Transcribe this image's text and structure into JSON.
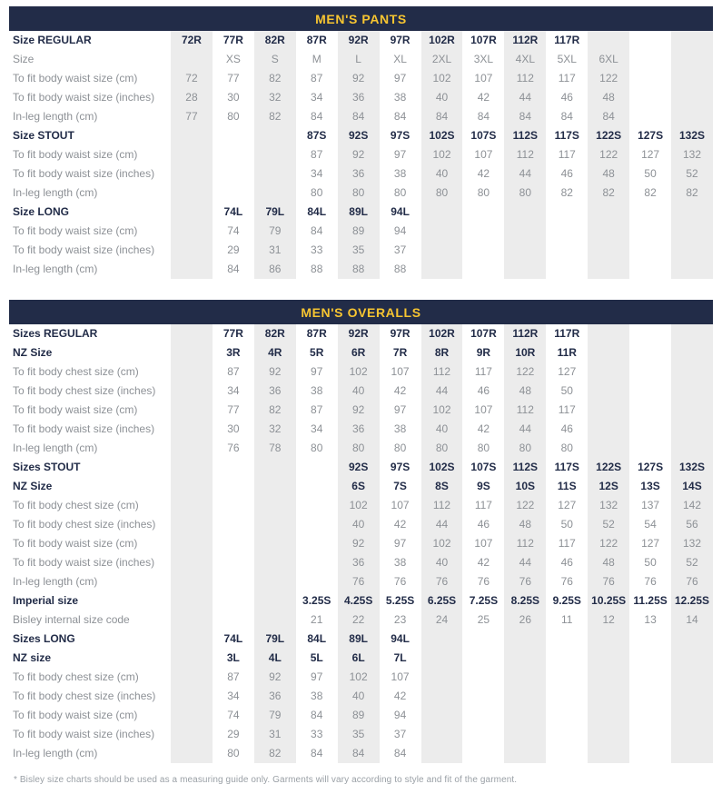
{
  "colors": {
    "header_bg_navy": "#222c48",
    "header_text_yellow": "#f7c531",
    "column_shade_gray": "#ececec",
    "value_text_gray": "#8d9196",
    "bold_text_navy": "#222c48"
  },
  "footnote": "* Bisley size charts should be used as a measuring guide only. Garments will vary according to style and fit of the garment.",
  "tables": [
    {
      "title": "MEN'S PANTS",
      "rows": [
        {
          "label": "Size REGULAR",
          "label_bold": true,
          "values_bold": true,
          "cells": [
            "72R",
            "77R",
            "82R",
            "87R",
            "92R",
            "97R",
            "102R",
            "107R",
            "112R",
            "117R",
            "",
            "",
            ""
          ]
        },
        {
          "label": "Size",
          "label_bold": false,
          "values_bold": false,
          "cells": [
            "",
            "XS",
            "S",
            "M",
            "L",
            "XL",
            "2XL",
            "3XL",
            "4XL",
            "5XL",
            "6XL",
            "",
            ""
          ]
        },
        {
          "label": "To fit body waist size (cm)",
          "label_bold": false,
          "values_bold": false,
          "cells": [
            "72",
            "77",
            "82",
            "87",
            "92",
            "97",
            "102",
            "107",
            "112",
            "117",
            "122",
            "",
            ""
          ]
        },
        {
          "label": "To fit body waist size (inches)",
          "label_bold": false,
          "values_bold": false,
          "cells": [
            "28",
            "30",
            "32",
            "34",
            "36",
            "38",
            "40",
            "42",
            "44",
            "46",
            "48",
            "",
            ""
          ]
        },
        {
          "label": "In-leg length (cm)",
          "label_bold": false,
          "values_bold": false,
          "cells": [
            "77",
            "80",
            "82",
            "84",
            "84",
            "84",
            "84",
            "84",
            "84",
            "84",
            "84",
            "",
            ""
          ]
        },
        {
          "label": "Size STOUT",
          "label_bold": true,
          "values_bold": true,
          "cells": [
            "",
            "",
            "",
            "87S",
            "92S",
            "97S",
            "102S",
            "107S",
            "112S",
            "117S",
            "122S",
            "127S",
            "132S"
          ]
        },
        {
          "label": "To fit body waist size (cm)",
          "label_bold": false,
          "values_bold": false,
          "cells": [
            "",
            "",
            "",
            "87",
            "92",
            "97",
            "102",
            "107",
            "112",
            "117",
            "122",
            "127",
            "132"
          ]
        },
        {
          "label": "To fit body waist size (inches)",
          "label_bold": false,
          "values_bold": false,
          "cells": [
            "",
            "",
            "",
            "34",
            "36",
            "38",
            "40",
            "42",
            "44",
            "46",
            "48",
            "50",
            "52"
          ]
        },
        {
          "label": "In-leg length (cm)",
          "label_bold": false,
          "values_bold": false,
          "cells": [
            "",
            "",
            "",
            "80",
            "80",
            "80",
            "80",
            "80",
            "80",
            "82",
            "82",
            "82",
            "82"
          ]
        },
        {
          "label": "Size LONG",
          "label_bold": true,
          "values_bold": true,
          "cells": [
            "",
            "74L",
            "79L",
            "84L",
            "89L",
            "94L",
            "",
            "",
            "",
            "",
            "",
            "",
            ""
          ]
        },
        {
          "label": "To fit body waist size (cm)",
          "label_bold": false,
          "values_bold": false,
          "cells": [
            "",
            "74",
            "79",
            "84",
            "89",
            "94",
            "",
            "",
            "",
            "",
            "",
            "",
            ""
          ]
        },
        {
          "label": "To fit body waist size (inches)",
          "label_bold": false,
          "values_bold": false,
          "cells": [
            "",
            "29",
            "31",
            "33",
            "35",
            "37",
            "",
            "",
            "",
            "",
            "",
            "",
            ""
          ]
        },
        {
          "label": "In-leg length (cm)",
          "label_bold": false,
          "values_bold": false,
          "cells": [
            "",
            "84",
            "86",
            "88",
            "88",
            "88",
            "",
            "",
            "",
            "",
            "",
            "",
            ""
          ]
        }
      ]
    },
    {
      "title": "MEN'S OVERALLS",
      "rows": [
        {
          "label": "Sizes REGULAR",
          "label_bold": true,
          "values_bold": true,
          "cells": [
            "",
            "77R",
            "82R",
            "87R",
            "92R",
            "97R",
            "102R",
            "107R",
            "112R",
            "117R",
            "",
            "",
            ""
          ]
        },
        {
          "label": "NZ Size",
          "label_bold": true,
          "values_bold": true,
          "cells": [
            "",
            "3R",
            "4R",
            "5R",
            "6R",
            "7R",
            "8R",
            "9R",
            "10R",
            "11R",
            "",
            "",
            ""
          ]
        },
        {
          "label": "To fit body chest size (cm)",
          "label_bold": false,
          "values_bold": false,
          "cells": [
            "",
            "87",
            "92",
            "97",
            "102",
            "107",
            "112",
            "117",
            "122",
            "127",
            "",
            "",
            ""
          ]
        },
        {
          "label": "To fit body chest size (inches)",
          "label_bold": false,
          "values_bold": false,
          "cells": [
            "",
            "34",
            "36",
            "38",
            "40",
            "42",
            "44",
            "46",
            "48",
            "50",
            "",
            "",
            ""
          ]
        },
        {
          "label": "To fit body waist size (cm)",
          "label_bold": false,
          "values_bold": false,
          "cells": [
            "",
            "77",
            "82",
            "87",
            "92",
            "97",
            "102",
            "107",
            "112",
            "117",
            "",
            "",
            ""
          ]
        },
        {
          "label": "To fit body waist size (inches)",
          "label_bold": false,
          "values_bold": false,
          "cells": [
            "",
            "30",
            "32",
            "34",
            "36",
            "38",
            "40",
            "42",
            "44",
            "46",
            "",
            "",
            ""
          ]
        },
        {
          "label": "In-leg length (cm)",
          "label_bold": false,
          "values_bold": false,
          "cells": [
            "",
            "76",
            "78",
            "80",
            "80",
            "80",
            "80",
            "80",
            "80",
            "80",
            "",
            "",
            ""
          ]
        },
        {
          "label": "Sizes STOUT",
          "label_bold": true,
          "values_bold": true,
          "cells": [
            "",
            "",
            "",
            "",
            "92S",
            "97S",
            "102S",
            "107S",
            "112S",
            "117S",
            "122S",
            "127S",
            "132S"
          ]
        },
        {
          "label": "NZ Size",
          "label_bold": true,
          "values_bold": true,
          "cells": [
            "",
            "",
            "",
            "",
            "6S",
            "7S",
            "8S",
            "9S",
            "10S",
            "11S",
            "12S",
            "13S",
            "14S"
          ]
        },
        {
          "label": "To fit body chest size (cm)",
          "label_bold": false,
          "values_bold": false,
          "cells": [
            "",
            "",
            "",
            "",
            "102",
            "107",
            "112",
            "117",
            "122",
            "127",
            "132",
            "137",
            "142"
          ]
        },
        {
          "label": "To fit body chest size (inches)",
          "label_bold": false,
          "values_bold": false,
          "cells": [
            "",
            "",
            "",
            "",
            "40",
            "42",
            "44",
            "46",
            "48",
            "50",
            "52",
            "54",
            "56"
          ]
        },
        {
          "label": "To fit body waist size (cm)",
          "label_bold": false,
          "values_bold": false,
          "cells": [
            "",
            "",
            "",
            "",
            "92",
            "97",
            "102",
            "107",
            "112",
            "117",
            "122",
            "127",
            "132"
          ]
        },
        {
          "label": "To fit body waist size (inches)",
          "label_bold": false,
          "values_bold": false,
          "cells": [
            "",
            "",
            "",
            "",
            "36",
            "38",
            "40",
            "42",
            "44",
            "46",
            "48",
            "50",
            "52"
          ]
        },
        {
          "label": "In-leg length (cm)",
          "label_bold": false,
          "values_bold": false,
          "cells": [
            "",
            "",
            "",
            "",
            "76",
            "76",
            "76",
            "76",
            "76",
            "76",
            "76",
            "76",
            "76"
          ]
        },
        {
          "label": "Imperial size",
          "label_bold": true,
          "values_bold": true,
          "cells": [
            "",
            "",
            "",
            "3.25S",
            "4.25S",
            "5.25S",
            "6.25S",
            "7.25S",
            "8.25S",
            "9.25S",
            "10.25S",
            "11.25S",
            "12.25S"
          ]
        },
        {
          "label": "Bisley internal size code",
          "label_bold": false,
          "values_bold": false,
          "cells": [
            "",
            "",
            "",
            "21",
            "22",
            "23",
            "24",
            "25",
            "26",
            "11",
            "12",
            "13",
            "14"
          ]
        },
        {
          "label": "Sizes LONG",
          "label_bold": true,
          "values_bold": true,
          "cells": [
            "",
            "74L",
            "79L",
            "84L",
            "89L",
            "94L",
            "",
            "",
            "",
            "",
            "",
            "",
            ""
          ]
        },
        {
          "label": "NZ size",
          "label_bold": true,
          "values_bold": true,
          "cells": [
            "",
            "3L",
            "4L",
            "5L",
            "6L",
            "7L",
            "",
            "",
            "",
            "",
            "",
            "",
            ""
          ]
        },
        {
          "label": "To fit body chest size (cm)",
          "label_bold": false,
          "values_bold": false,
          "cells": [
            "",
            "87",
            "92",
            "97",
            "102",
            "107",
            "",
            "",
            "",
            "",
            "",
            "",
            ""
          ]
        },
        {
          "label": "To fit body chest size (inches)",
          "label_bold": false,
          "values_bold": false,
          "cells": [
            "",
            "34",
            "36",
            "38",
            "40",
            "42",
            "",
            "",
            "",
            "",
            "",
            "",
            ""
          ]
        },
        {
          "label": "To fit body waist size (cm)",
          "label_bold": false,
          "values_bold": false,
          "cells": [
            "",
            "74",
            "79",
            "84",
            "89",
            "94",
            "",
            "",
            "",
            "",
            "",
            "",
            ""
          ]
        },
        {
          "label": "To fit body waist size (inches)",
          "label_bold": false,
          "values_bold": false,
          "cells": [
            "",
            "29",
            "31",
            "33",
            "35",
            "37",
            "",
            "",
            "",
            "",
            "",
            "",
            ""
          ]
        },
        {
          "label": "In-leg length (cm)",
          "label_bold": false,
          "values_bold": false,
          "cells": [
            "",
            "80",
            "82",
            "84",
            "84",
            "84",
            "",
            "",
            "",
            "",
            "",
            "",
            ""
          ]
        }
      ]
    }
  ]
}
